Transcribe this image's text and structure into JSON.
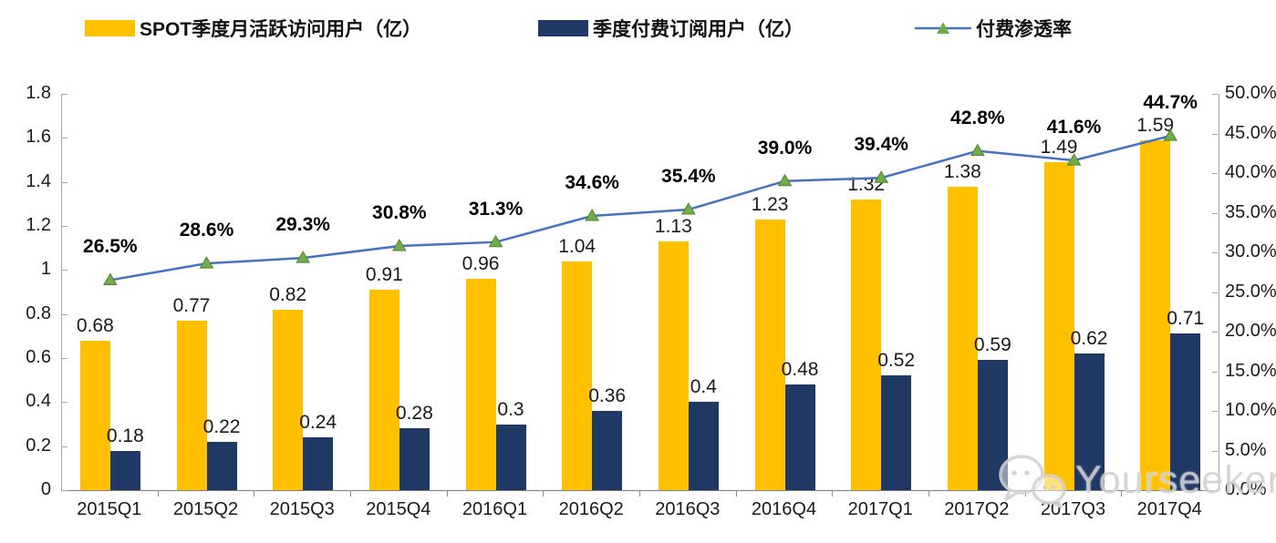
{
  "legend": {
    "items": [
      {
        "label": "SPOT季度月活跃访问用户（亿）",
        "swatch_color": "#FFC000",
        "type": "bar"
      },
      {
        "label": "季度付费订阅用户（亿）",
        "swatch_color": "#1F3864",
        "type": "bar"
      },
      {
        "label": "付费渗透率",
        "line_color": "#4472C4",
        "marker_color": "#70AD47",
        "type": "line"
      }
    ]
  },
  "chart_data": {
    "type": "bar+line",
    "categories": [
      "2015Q1",
      "2015Q2",
      "2015Q3",
      "2015Q4",
      "2016Q1",
      "2016Q2",
      "2016Q3",
      "2016Q4",
      "2017Q1",
      "2017Q2",
      "2017Q3",
      "2017Q4"
    ],
    "series": [
      {
        "name": "SPOT季度月活跃访问用户（亿）",
        "type": "bar",
        "axis": "left",
        "color": "#FFC000",
        "values": [
          0.68,
          0.77,
          0.82,
          0.91,
          0.96,
          1.04,
          1.13,
          1.23,
          1.32,
          1.38,
          1.49,
          1.59
        ],
        "labels": [
          "0.68",
          "0.77",
          "0.82",
          "0.91",
          "0.96",
          "1.04",
          "1.13",
          "1.23",
          "1.32",
          "1.38",
          "1.49",
          "1.59"
        ]
      },
      {
        "name": "季度付费订阅用户（亿）",
        "type": "bar",
        "axis": "left",
        "color": "#1F3864",
        "values": [
          0.18,
          0.22,
          0.24,
          0.28,
          0.3,
          0.36,
          0.4,
          0.48,
          0.52,
          0.59,
          0.62,
          0.71
        ],
        "labels": [
          "0.18",
          "0.22",
          "0.24",
          "0.28",
          "0.3",
          "0.36",
          "0.4",
          "0.48",
          "0.52",
          "0.59",
          "0.62",
          "0.71"
        ]
      },
      {
        "name": "付费渗透率",
        "type": "line",
        "axis": "right",
        "color": "#4472C4",
        "marker": "triangle",
        "marker_color": "#70AD47",
        "values": [
          26.5,
          28.6,
          29.3,
          30.8,
          31.3,
          34.6,
          35.4,
          39.0,
          39.4,
          42.8,
          41.6,
          44.7
        ],
        "labels": [
          "26.5%",
          "28.6%",
          "29.3%",
          "30.8%",
          "31.3%",
          "34.6%",
          "35.4%",
          "39.0%",
          "39.4%",
          "42.8%",
          "41.6%",
          "44.7%"
        ]
      }
    ],
    "left_axis": {
      "min": 0,
      "max": 1.8,
      "ticks": [
        "0",
        "0.2",
        "0.4",
        "0.6",
        "0.8",
        "1",
        "1.2",
        "1.4",
        "1.6",
        "1.8"
      ]
    },
    "right_axis": {
      "min": 0,
      "max": 50,
      "ticks": [
        "0.0%",
        "5.0%",
        "10.0%",
        "15.0%",
        "20.0%",
        "25.0%",
        "30.0%",
        "35.0%",
        "40.0%",
        "45.0%",
        "50.0%"
      ]
    },
    "grid": "off",
    "legend_position": "top"
  },
  "watermark": {
    "text": "Yourseeker",
    "icon": "wechat-icon"
  }
}
